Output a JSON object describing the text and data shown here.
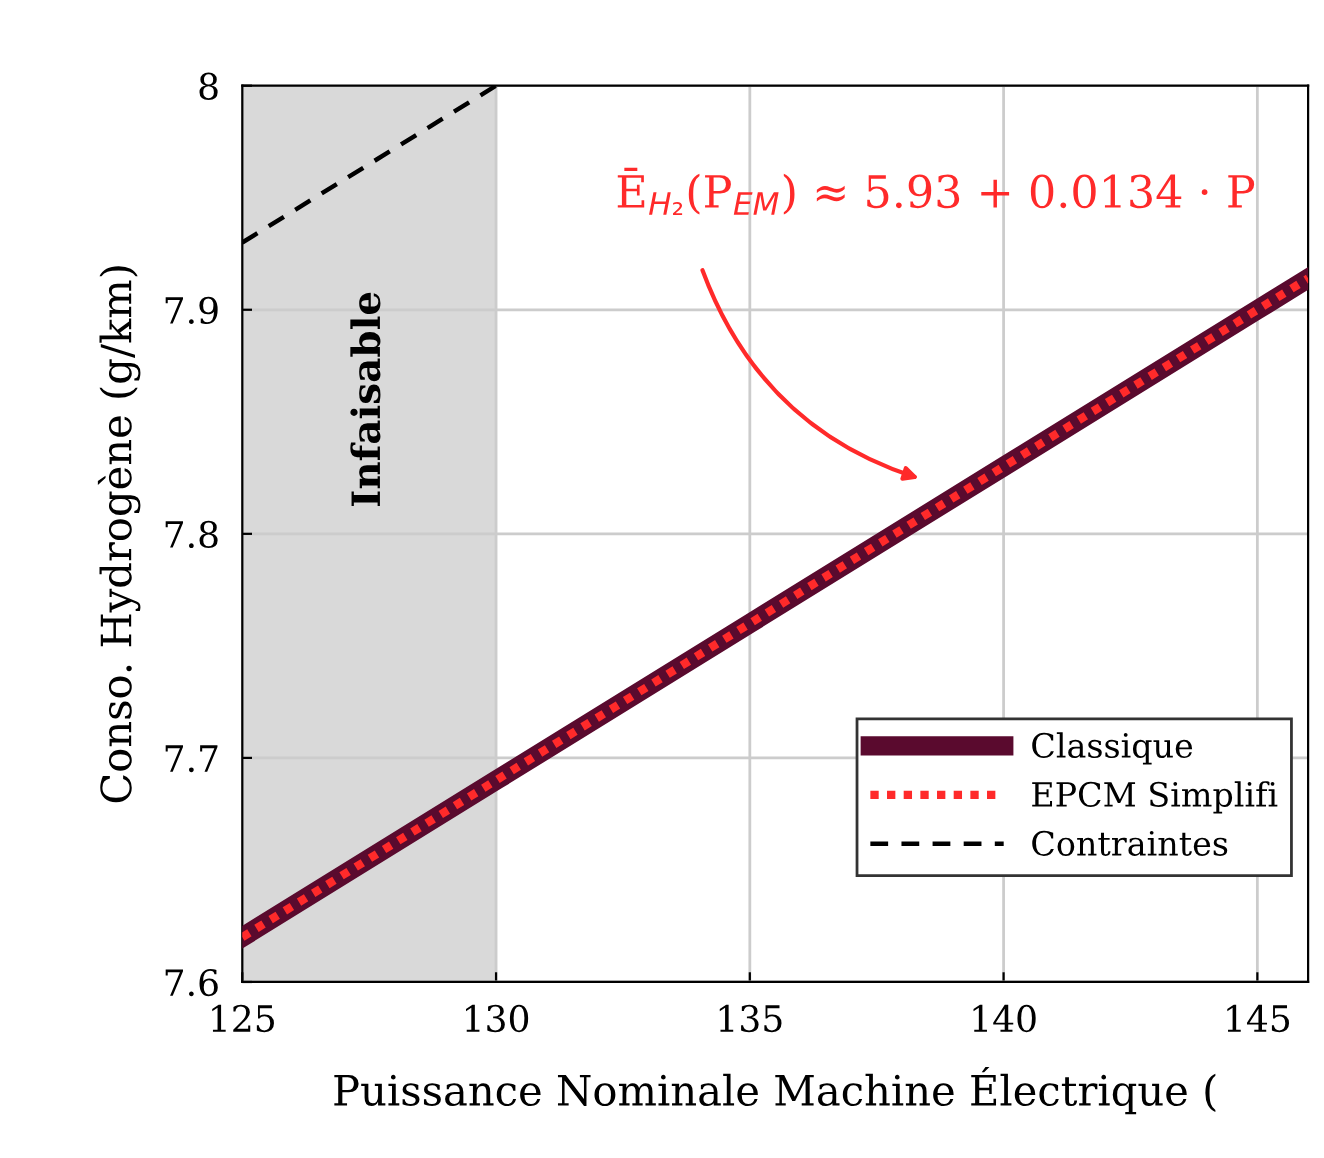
{
  "chart_data": {
    "type": "line",
    "xlabel": "Puissance Nominale Machine Électrique (",
    "ylabel": "Conso. Hydrogène (g/km)",
    "x": [
      125,
      130,
      135,
      140,
      145,
      146
    ],
    "series": [
      {
        "name": "Classique",
        "color": "#5a0a2e",
        "values": [
          7.62,
          7.69,
          7.76,
          7.83,
          7.9,
          7.914
        ],
        "line_style": "solid"
      },
      {
        "name": "EPCM Simplifi",
        "color": "#ff2a2a",
        "values": [
          7.62,
          7.69,
          7.76,
          7.83,
          7.9,
          7.914
        ],
        "line_style": "dashed"
      },
      {
        "name": "Contraintes",
        "color": "#000000",
        "x": [
          125,
          130
        ],
        "values": [
          7.93,
          8.0
        ],
        "line_style": "dashed"
      }
    ],
    "bands": [
      {
        "axis": "x",
        "from": 125,
        "to": 130,
        "label": "Infaisable",
        "color": "#d9d9d9"
      }
    ],
    "annotations": [
      "Ē$_{H₂}$(P$_{EM}$) ≈ 5.93 + 0.0134 · P"
    ],
    "xlim": [
      125,
      146
    ],
    "ylim": [
      7.6,
      8.0
    ],
    "xticks": [
      125,
      130,
      135,
      140,
      145
    ],
    "yticks": [
      7.6,
      7.7,
      7.8,
      7.9,
      8
    ],
    "grid": true,
    "legend": "bottom right",
    "marker": "none"
  }
}
